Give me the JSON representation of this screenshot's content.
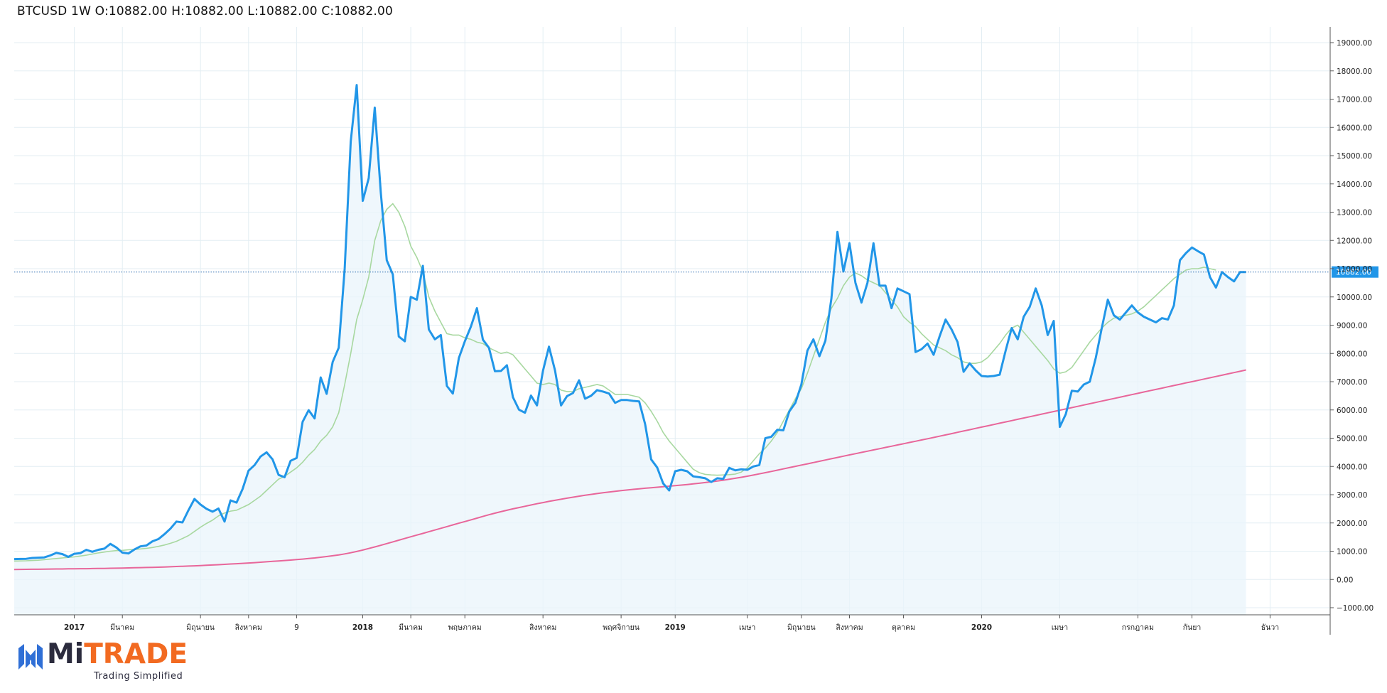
{
  "header": {
    "title": "BTCUSD 1W O:10882.00 H:10882.00 L:10882.00 C:10882.00"
  },
  "logo": {
    "name_part1": "Mi",
    "name_part2": "TRADE",
    "tagline": "Trading Simplified"
  },
  "colors": {
    "price_line": "#2196e8",
    "price_fill": "#eaf4fb",
    "ma_short": "#a8d8a0",
    "ma_long": "#e8669a",
    "grid": "#e3eef3",
    "price_tag": "#2196e8"
  },
  "chart_data": {
    "type": "area",
    "title": "BTCUSD 1W O:10882.00 H:10882.00 L:10882.00 C:10882.00",
    "xlabel": "",
    "ylabel": "",
    "ylim": [
      -1000,
      19000
    ],
    "grid": true,
    "y_ticks": [
      "19000.00",
      "18000.00",
      "17000.00",
      "16000.00",
      "15000.00",
      "14000.00",
      "13000.00",
      "12000.00",
      "11000.00",
      "10000.00",
      "9000.00",
      "8000.00",
      "7000.00",
      "6000.00",
      "5000.00",
      "4000.00",
      "3000.00",
      "2000.00",
      "1000.00",
      "0.00",
      "−1000.00"
    ],
    "x_ticks": [
      {
        "label": "2017",
        "week": 10,
        "major": true
      },
      {
        "label": "มีนาคม",
        "week": 18,
        "major": false
      },
      {
        "label": "มิถุนายน",
        "week": 31,
        "major": false
      },
      {
        "label": "สิงหาคม",
        "week": 39,
        "major": false
      },
      {
        "label": "9",
        "week": 47,
        "major": false
      },
      {
        "label": "2018",
        "week": 58,
        "major": true
      },
      {
        "label": "มีนาคม",
        "week": 66,
        "major": false
      },
      {
        "label": "พฤษภาคม",
        "week": 75,
        "major": false
      },
      {
        "label": "สิงหาคม",
        "week": 88,
        "major": false
      },
      {
        "label": "พฤศจิกายน",
        "week": 101,
        "major": false
      },
      {
        "label": "2019",
        "week": 110,
        "major": true
      },
      {
        "label": "เมษา",
        "week": 122,
        "major": false
      },
      {
        "label": "มิถุนายน",
        "week": 131,
        "major": false
      },
      {
        "label": "สิงหาคม",
        "week": 139,
        "major": false
      },
      {
        "label": "ตุลาคม",
        "week": 148,
        "major": false
      },
      {
        "label": "2020",
        "week": 161,
        "major": true
      },
      {
        "label": "เมษา",
        "week": 174,
        "major": false
      },
      {
        "label": "กรกฎาคม",
        "week": 187,
        "major": false
      },
      {
        "label": "กันยา",
        "week": 196,
        "major": false
      },
      {
        "label": "ธันวา",
        "week": 209,
        "major": false
      }
    ],
    "last_price": {
      "value": 10882,
      "label": "10882.00"
    },
    "series": [
      {
        "style": "area",
        "values": [
          720,
          725,
          730,
          760,
          770,
          780,
          850,
          940,
          900,
          800,
          910,
          930,
          1050,
          980,
          1050,
          1090,
          1260,
          1130,
          950,
          920,
          1060,
          1170,
          1200,
          1350,
          1430,
          1600,
          1800,
          2050,
          2020,
          2450,
          2850,
          2650,
          2500,
          2400,
          2510,
          2050,
          2800,
          2720,
          3200,
          3850,
          4050,
          4350,
          4500,
          4250,
          3700,
          3620,
          4200,
          4300,
          5580,
          5990,
          5700,
          7150,
          6570,
          7700,
          8200,
          11000,
          15500,
          17500,
          13400,
          14200,
          16700,
          13700,
          11300,
          10800,
          8600,
          8430,
          10000,
          9900,
          11100,
          8850,
          8500,
          8650,
          6850,
          6580,
          7840,
          8430,
          8950,
          9600,
          8490,
          8200,
          7370,
          7380,
          7580,
          6450,
          6010,
          5900,
          6510,
          6160,
          7390,
          8240,
          7400,
          6160,
          6490,
          6600,
          7050,
          6400,
          6500,
          6700,
          6650,
          6580,
          6250,
          6350,
          6350,
          6320,
          6300,
          5500,
          4250,
          3960,
          3400,
          3150,
          3830,
          3880,
          3830,
          3650,
          3620,
          3580,
          3450,
          3580,
          3560,
          3950,
          3860,
          3900,
          3880,
          4000,
          4050,
          5000,
          5050,
          5300,
          5280,
          5950,
          6250,
          6900,
          8100,
          8500,
          7900,
          8450,
          9950,
          12300,
          10900,
          11900,
          10500,
          9800,
          10500,
          11900,
          10400,
          10400,
          9600,
          10300,
          10200,
          10100,
          8050,
          8150,
          8350,
          7950,
          8600,
          9200,
          8850,
          8400,
          7350,
          7650,
          7400,
          7200,
          7180,
          7200,
          7250,
          8100,
          8900,
          8500,
          9300,
          9650,
          10300,
          9700,
          8650,
          9150,
          5400,
          5850,
          6680,
          6650,
          6900,
          7000,
          7850,
          8900,
          9900,
          9350,
          9200,
          9450,
          9700,
          9450,
          9300,
          9200,
          9100,
          9250,
          9200,
          9700,
          11300,
          11550,
          11750,
          11620,
          11500,
          10700,
          10330,
          10880,
          10700,
          10550,
          10880,
          10882
        ]
      },
      {
        "style": "line",
        "values": [
          650,
          655,
          660,
          670,
          680,
          700,
          720,
          740,
          760,
          780,
          800,
          830,
          860,
          900,
          940,
          970,
          1000,
          1020,
          1030,
          1050,
          1060,
          1080,
          1100,
          1130,
          1170,
          1220,
          1280,
          1350,
          1450,
          1550,
          1700,
          1850,
          1980,
          2100,
          2250,
          2350,
          2420,
          2450,
          2550,
          2650,
          2800,
          2950,
          3150,
          3350,
          3550,
          3650,
          3800,
          3950,
          4150,
          4400,
          4600,
          4900,
          5100,
          5400,
          5900,
          6900,
          8000,
          9200,
          9900,
          10700,
          12000,
          12700,
          13100,
          13300,
          13000,
          12500,
          11800,
          11400,
          10900,
          10000,
          9500,
          9100,
          8700,
          8650,
          8650,
          8550,
          8500,
          8400,
          8350,
          8200,
          8100,
          8000,
          8050,
          7950,
          7700,
          7450,
          7200,
          6950,
          6900,
          6950,
          6900,
          6700,
          6650,
          6650,
          6750,
          6800,
          6850,
          6900,
          6850,
          6700,
          6550,
          6550,
          6550,
          6500,
          6450,
          6250,
          5950,
          5600,
          5200,
          4900,
          4650,
          4400,
          4150,
          3900,
          3780,
          3720,
          3700,
          3690,
          3700,
          3710,
          3730,
          3800,
          3950,
          4200,
          4450,
          4650,
          4900,
          5200,
          5600,
          6000,
          6400,
          6750,
          7300,
          7900,
          8500,
          9100,
          9600,
          9950,
          10400,
          10700,
          10850,
          10750,
          10600,
          10500,
          10400,
          10150,
          9900,
          9650,
          9300,
          9100,
          8950,
          8700,
          8500,
          8300,
          8200,
          8100,
          7950,
          7850,
          7700,
          7650,
          7650,
          7700,
          7850,
          8100,
          8350,
          8650,
          8900,
          9000,
          8750,
          8500,
          8250,
          8000,
          7750,
          7450,
          7300,
          7350,
          7500,
          7800,
          8100,
          8400,
          8650,
          8900,
          9100,
          9250,
          9300,
          9350,
          9400,
          9500,
          9650,
          9850,
          10050,
          10250,
          10450,
          10650,
          10800,
          10950,
          11000,
          11000,
          11050,
          11000,
          10950
        ]
      },
      {
        "style": "line",
        "values": [
          350,
          355,
          358,
          360,
          362,
          365,
          368,
          370,
          372,
          375,
          378,
          380,
          382,
          385,
          388,
          392,
          396,
          400,
          405,
          410,
          415,
          420,
          425,
          430,
          435,
          442,
          450,
          458,
          466,
          474,
          483,
          492,
          502,
          512,
          523,
          534,
          546,
          558,
          570,
          583,
          596,
          610,
          625,
          640,
          655,
          670,
          686,
          702,
          720,
          740,
          762,
          786,
          812,
          840,
          870,
          905,
          945,
          990,
          1040,
          1095,
          1150,
          1210,
          1270,
          1330,
          1390,
          1450,
          1510,
          1570,
          1630,
          1690,
          1750,
          1810,
          1870,
          1930,
          1990,
          2050,
          2110,
          2170,
          2230,
          2290,
          2345,
          2400,
          2450,
          2500,
          2545,
          2590,
          2635,
          2680,
          2722,
          2763,
          2802,
          2840,
          2876,
          2912,
          2946,
          2979,
          3010,
          3040,
          3068,
          3095,
          3120,
          3144,
          3167,
          3188,
          3208,
          3228,
          3247,
          3265,
          3283,
          3301,
          3320,
          3340,
          3360,
          3382,
          3405,
          3430,
          3456,
          3484,
          3514,
          3546,
          3580,
          3616,
          3654,
          3694,
          3736,
          3779,
          3823,
          3868,
          3913,
          3958,
          4003,
          4048,
          4093,
          4138,
          4183,
          4228,
          4273,
          4318,
          4363,
          4408,
          4452,
          4496,
          4540,
          4584,
          4628,
          4672,
          4716,
          4760,
          4804,
          4848,
          4892,
          4936,
          4980,
          5025,
          5070,
          5116,
          5162,
          5208,
          5254,
          5300,
          5346,
          5392,
          5438,
          5484,
          5530,
          5576,
          5622,
          5668,
          5714,
          5760,
          5806,
          5852,
          5898,
          5944,
          5990,
          6036,
          6082,
          6128,
          6174,
          6220,
          6266,
          6312,
          6358,
          6404,
          6450,
          6496,
          6542,
          6588,
          6634,
          6680,
          6726,
          6772,
          6818,
          6864,
          6910,
          6956,
          7000,
          7046,
          7092,
          7138,
          7184,
          7230,
          7276,
          7322,
          7368,
          7414
        ]
      }
    ]
  }
}
